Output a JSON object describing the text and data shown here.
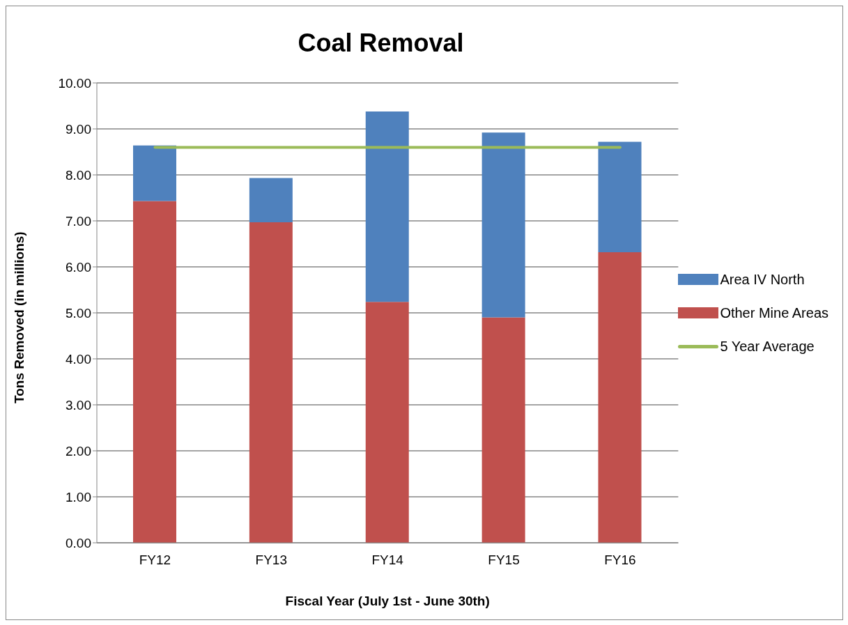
{
  "chart_data": {
    "type": "bar",
    "title": "Coal Removal",
    "xlabel": "Fiscal Year (July 1st - June 30th)",
    "ylabel": "Tons  Removed (in millions)",
    "categories": [
      "FY12",
      "FY13",
      "FY14",
      "FY15",
      "FY16"
    ],
    "stacked": true,
    "series": [
      {
        "name": "Other Mine Areas",
        "color": "#c0504d",
        "values": [
          7.43,
          6.97,
          5.24,
          4.9,
          6.32
        ]
      },
      {
        "name": "Area IV North",
        "color": "#4f81bd",
        "values": [
          1.21,
          0.96,
          4.14,
          4.02,
          2.4
        ]
      },
      {
        "name": "5 Year Average",
        "type": "line",
        "color": "#9bbb59",
        "values": [
          8.6,
          8.6,
          8.6,
          8.6,
          8.6
        ]
      }
    ],
    "ylim": [
      0,
      10
    ],
    "yticks": [
      {
        "value": 0,
        "label": "0.00"
      },
      {
        "value": 1,
        "label": "1.00"
      },
      {
        "value": 2,
        "label": "2.00"
      },
      {
        "value": 3,
        "label": "3.00"
      },
      {
        "value": 4,
        "label": "4.00"
      },
      {
        "value": 5,
        "label": "5.00"
      },
      {
        "value": 6,
        "label": "6.00"
      },
      {
        "value": 7,
        "label": "7.00"
      },
      {
        "value": 8,
        "label": "8.00"
      },
      {
        "value": 9,
        "label": "9.00"
      },
      {
        "value": 10,
        "label": "10.00"
      }
    ],
    "grid": "y",
    "legend": "right"
  }
}
